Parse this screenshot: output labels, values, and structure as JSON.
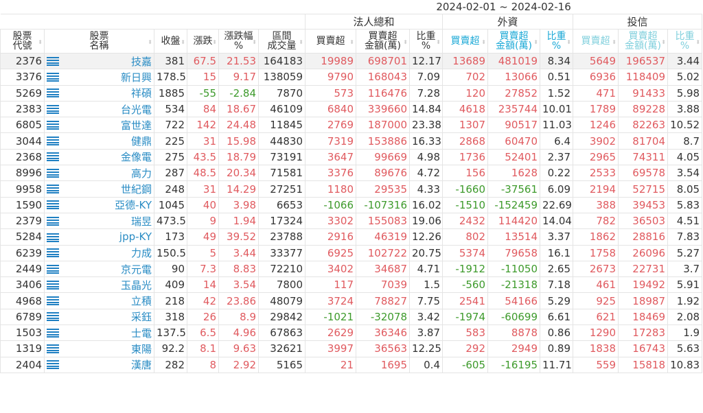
{
  "date_range": "2024-02-01 ~ 2024-02-16",
  "groups": [
    "法人總和",
    "外資",
    "投信"
  ],
  "headers": [
    "股票\n代號",
    "股票\n名稱",
    "收盤",
    "漲跌",
    "漲跌幅\n%",
    "區間\n成交量",
    "買賣超",
    "買賣超\n金額(萬)",
    "比重\n%",
    "買賣超",
    "買賣超\n金額(萬)",
    "比重\n%",
    "買賣超",
    "買賣超\n金額(萬)",
    "比重\n%"
  ],
  "colors": {
    "up": "#e05a5f",
    "down": "#3d9a2b",
    "name": "#2a8cc4",
    "foreign": "#1aa8d6",
    "trust": "#7fcfdc"
  },
  "row_icon": "list-icon",
  "rows": [
    [
      "2376",
      "技嘉",
      "381",
      "67.5",
      "21.53",
      "164183",
      "19989",
      "698701",
      "12.17",
      "13689",
      "481019",
      "8.34",
      "5649",
      "196537",
      "3.44"
    ],
    [
      "3376",
      "新日興",
      "178.5",
      "15",
      "9.17",
      "138059",
      "9790",
      "168043",
      "7.09",
      "702",
      "13066",
      "0.51",
      "6936",
      "118409",
      "5.02"
    ],
    [
      "5269",
      "祥碩",
      "1885",
      "-55",
      "-2.84",
      "7870",
      "573",
      "116476",
      "7.28",
      "120",
      "27852",
      "1.52",
      "471",
      "91433",
      "5.98"
    ],
    [
      "2383",
      "台光電",
      "534",
      "84",
      "18.67",
      "46109",
      "6840",
      "339660",
      "14.84",
      "4618",
      "235744",
      "10.01",
      "1789",
      "89228",
      "3.88"
    ],
    [
      "6805",
      "富世達",
      "722",
      "142",
      "24.48",
      "11845",
      "2769",
      "187000",
      "23.38",
      "1307",
      "90517",
      "11.03",
      "1246",
      "82263",
      "10.52"
    ],
    [
      "3044",
      "健鼎",
      "225",
      "31",
      "15.98",
      "44830",
      "7319",
      "153886",
      "16.33",
      "2868",
      "60470",
      "6.4",
      "3902",
      "81704",
      "8.7"
    ],
    [
      "2368",
      "金像電",
      "275",
      "43.5",
      "18.79",
      "73191",
      "3647",
      "99669",
      "4.98",
      "1736",
      "52401",
      "2.37",
      "2965",
      "74311",
      "4.05"
    ],
    [
      "8996",
      "高力",
      "287",
      "48.5",
      "20.34",
      "71581",
      "3376",
      "89676",
      "4.72",
      "156",
      "1628",
      "0.22",
      "2533",
      "69578",
      "3.54"
    ],
    [
      "9958",
      "世紀鋼",
      "248",
      "31",
      "14.29",
      "27251",
      "1180",
      "29535",
      "4.33",
      "-1660",
      "-37561",
      "6.09",
      "2194",
      "52715",
      "8.05"
    ],
    [
      "1590",
      "亞德-KY",
      "1045",
      "40",
      "3.98",
      "6653",
      "-1066",
      "-107316",
      "16.02",
      "-1510",
      "-152459",
      "22.69",
      "388",
      "39453",
      "5.83"
    ],
    [
      "2379",
      "瑞昱",
      "473.5",
      "9",
      "1.94",
      "17324",
      "3302",
      "155083",
      "19.06",
      "2432",
      "114420",
      "14.04",
      "782",
      "36503",
      "4.51"
    ],
    [
      "5284",
      "jpp-KY",
      "173",
      "49",
      "39.52",
      "23788",
      "2916",
      "46319",
      "12.26",
      "802",
      "13514",
      "3.37",
      "1862",
      "28816",
      "7.83"
    ],
    [
      "6239",
      "力成",
      "150.5",
      "5",
      "3.44",
      "33377",
      "6925",
      "102722",
      "20.75",
      "5374",
      "79658",
      "16.1",
      "1758",
      "26096",
      "5.27"
    ],
    [
      "2449",
      "京元電",
      "90",
      "7.3",
      "8.83",
      "72210",
      "3402",
      "34687",
      "4.71",
      "-1912",
      "-11050",
      "2.65",
      "2673",
      "22731",
      "3.7"
    ],
    [
      "3406",
      "玉晶光",
      "409",
      "14",
      "3.54",
      "7800",
      "117",
      "7039",
      "1.5",
      "-560",
      "-21318",
      "7.18",
      "461",
      "19492",
      "5.91"
    ],
    [
      "4968",
      "立積",
      "218",
      "42",
      "23.86",
      "48079",
      "3724",
      "78827",
      "7.75",
      "2541",
      "54166",
      "5.29",
      "925",
      "18987",
      "1.92"
    ],
    [
      "6789",
      "采鈺",
      "318",
      "26",
      "8.9",
      "29842",
      "-1021",
      "-32078",
      "3.42",
      "-1974",
      "-60699",
      "6.61",
      "621",
      "18469",
      "2.08"
    ],
    [
      "1503",
      "士電",
      "137.5",
      "6.5",
      "4.96",
      "67863",
      "2629",
      "36346",
      "3.87",
      "583",
      "8878",
      "0.86",
      "1290",
      "17283",
      "1.9"
    ],
    [
      "1319",
      "東陽",
      "92.2",
      "8.1",
      "9.63",
      "32621",
      "3997",
      "36563",
      "12.25",
      "292",
      "2949",
      "0.89",
      "1838",
      "16743",
      "5.63"
    ],
    [
      "2404",
      "漢唐",
      "282",
      "8",
      "2.92",
      "5165",
      "21",
      "1695",
      "0.4",
      "-605",
      "-16195",
      "11.71",
      "559",
      "15818",
      "10.83"
    ]
  ]
}
